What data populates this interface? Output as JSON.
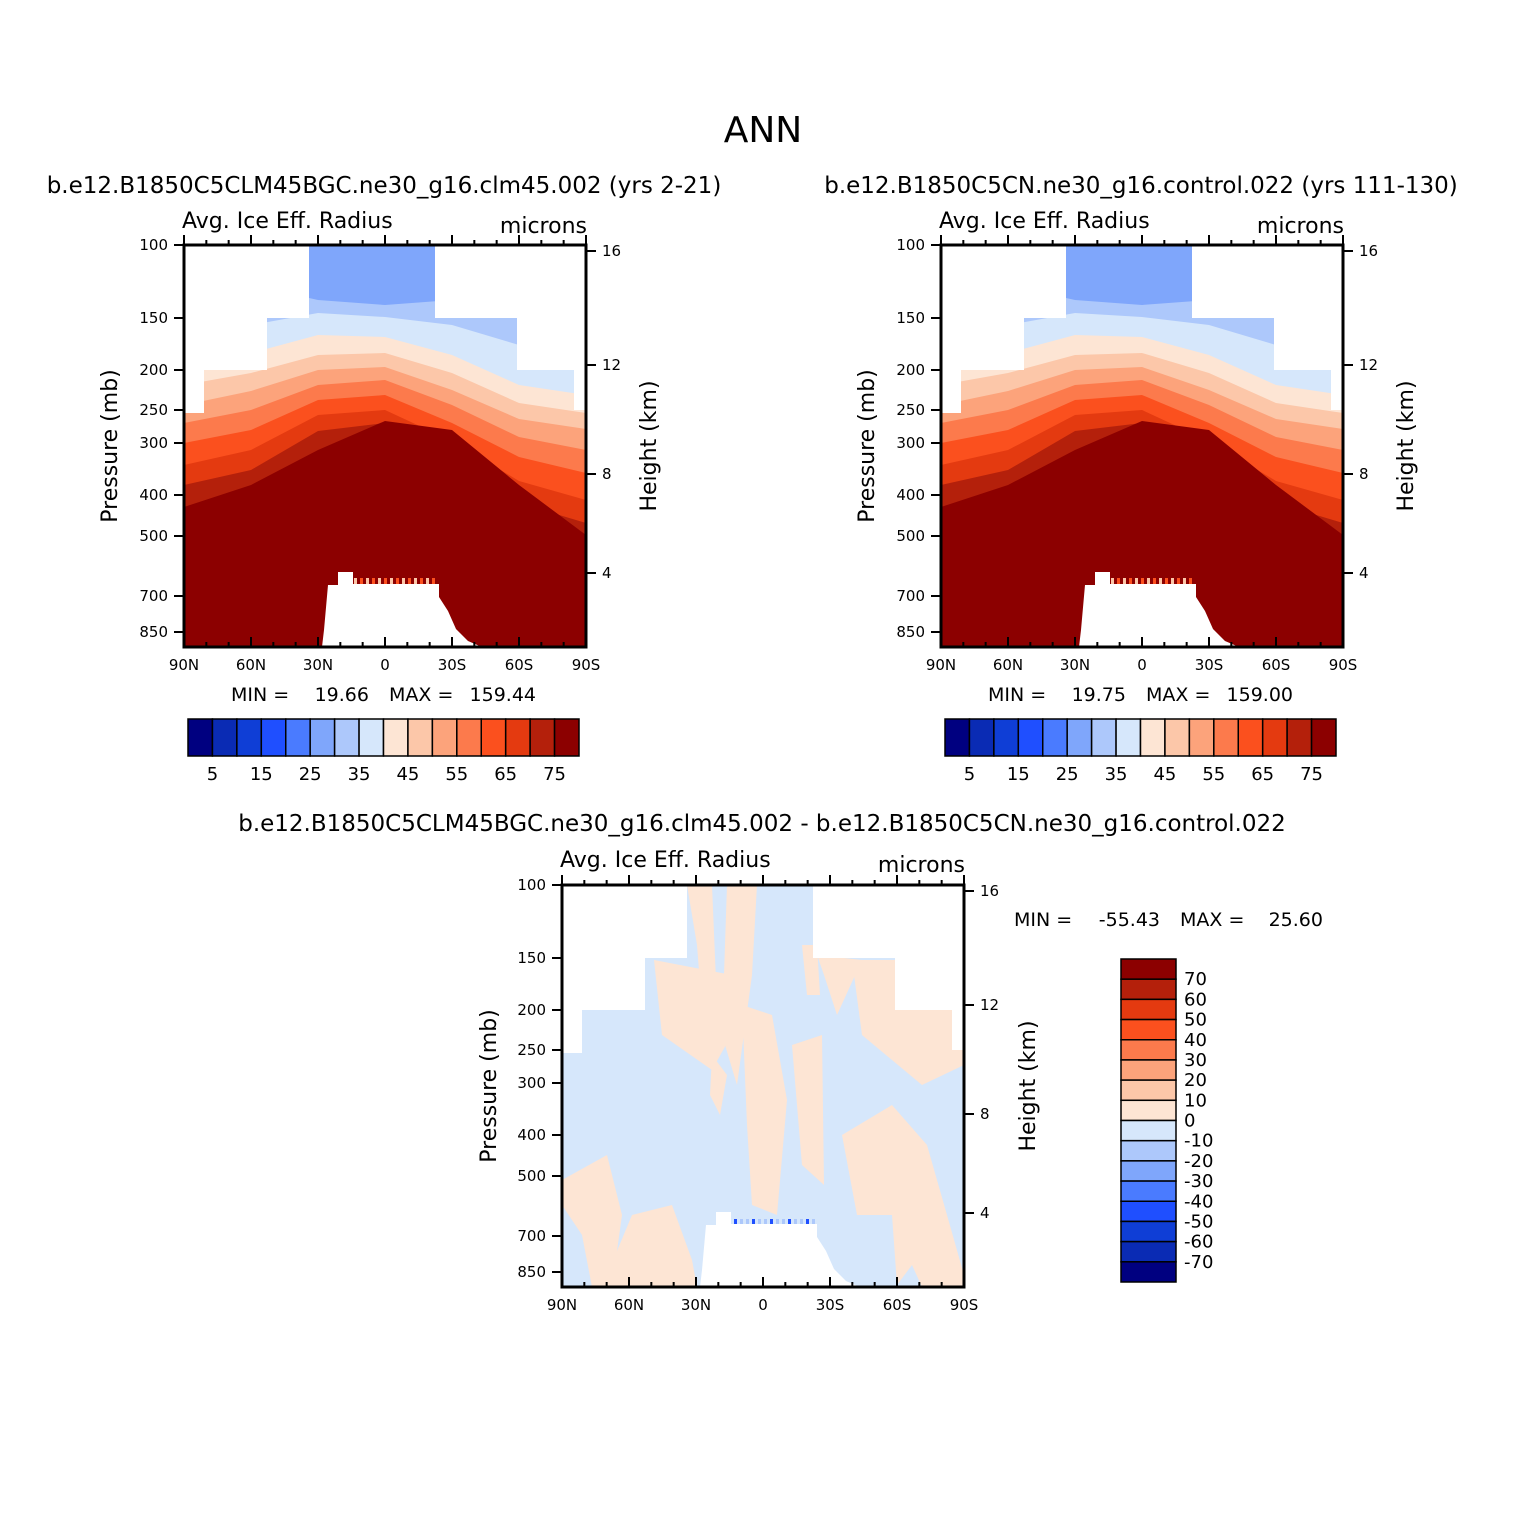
{
  "figure_title": "ANN",
  "chart_data": [
    {
      "type": "heatmap",
      "id": "panel_case1",
      "run_title": "b.e12.B1850C5CLM45BGC.ne30_g16.clm45.002 (yrs 2-21)",
      "variable": "Avg. Ice Eff. Radius",
      "units": "microns",
      "ylabel": "Pressure (mb)",
      "y2label": "Height (km)",
      "x_ticks": [
        "90N",
        "60N",
        "30N",
        "0",
        "30S",
        "60S",
        "90S"
      ],
      "y_ticks": [
        "100",
        "150",
        "200",
        "250",
        "300",
        "400",
        "500",
        "700",
        "850"
      ],
      "y2_ticks": [
        "16",
        "12",
        "8",
        "4"
      ],
      "min_label": "MIN =",
      "min_value": "19.66",
      "max_label": "MAX =",
      "max_value": "159.44",
      "colorbar_levels": [
        "5",
        "15",
        "25",
        "35",
        "45",
        "55",
        "65",
        "75"
      ]
    },
    {
      "type": "heatmap",
      "id": "panel_case2",
      "run_title": "b.e12.B1850C5CN.ne30_g16.control.022 (yrs 111-130)",
      "variable": "Avg. Ice Eff. Radius",
      "units": "microns",
      "ylabel": "Pressure (mb)",
      "y2label": "Height (km)",
      "x_ticks": [
        "90N",
        "60N",
        "30N",
        "0",
        "30S",
        "60S",
        "90S"
      ],
      "y_ticks": [
        "100",
        "150",
        "200",
        "250",
        "300",
        "400",
        "500",
        "700",
        "850"
      ],
      "y2_ticks": [
        "16",
        "12",
        "8",
        "4"
      ],
      "min_label": "MIN =",
      "min_value": "19.75",
      "max_label": "MAX =",
      "max_value": "159.00",
      "colorbar_levels": [
        "5",
        "15",
        "25",
        "35",
        "45",
        "55",
        "65",
        "75"
      ]
    },
    {
      "type": "heatmap",
      "id": "panel_diff",
      "run_title": "b.e12.B1850C5CLM45BGC.ne30_g16.clm45.002 - b.e12.B1850C5CN.ne30_g16.control.022",
      "variable": "Avg. Ice Eff. Radius",
      "units": "microns",
      "ylabel": "Pressure (mb)",
      "y2label": "Height (km)",
      "x_ticks": [
        "90N",
        "60N",
        "30N",
        "0",
        "30S",
        "60S",
        "90S"
      ],
      "y_ticks": [
        "100",
        "150",
        "200",
        "250",
        "300",
        "400",
        "500",
        "700",
        "850"
      ],
      "y2_ticks": [
        "16",
        "12",
        "8",
        "4"
      ],
      "min_label": "MIN =",
      "min_value": "-55.43",
      "max_label": "MAX =",
      "max_value": "25.60",
      "colorbar_levels": [
        "70",
        "60",
        "50",
        "40",
        "30",
        "20",
        "10",
        "0",
        "-10",
        "-20",
        "-30",
        "-40",
        "-50",
        "-60",
        "-70"
      ]
    }
  ],
  "colors": {
    "scale": [
      "#000080",
      "#0a2bb4",
      "#0f3ed6",
      "#1f4fff",
      "#4a7bff",
      "#7fa6fb",
      "#adc8fb",
      "#d6e7fb",
      "#fde5d4",
      "#fcc7a9",
      "#fca37b",
      "#fc7a4c",
      "#fb501e",
      "#e43a10",
      "#b4200b",
      "#8c0000"
    ],
    "diff_pos": "#fde5d4",
    "diff_neg": "#d6e7fb"
  }
}
